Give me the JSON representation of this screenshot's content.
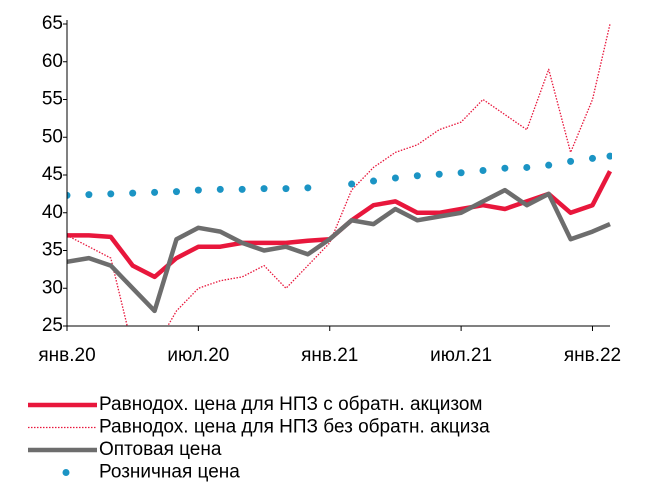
{
  "chart_data": {
    "type": "line",
    "x": [
      0,
      1,
      2,
      3,
      4,
      5,
      6,
      7,
      8,
      9,
      10,
      11,
      12,
      13,
      14,
      15,
      16,
      17,
      18,
      19,
      20,
      21,
      22,
      23,
      24,
      24.8
    ],
    "xlim": [
      0,
      24.8
    ],
    "xticks": [
      {
        "value": 0,
        "label": "янв.20"
      },
      {
        "value": 6,
        "label": "июл.20"
      },
      {
        "value": 12,
        "label": "янв.21"
      },
      {
        "value": 18,
        "label": "июл.21"
      },
      {
        "value": 24,
        "label": "янв.22"
      }
    ],
    "ylim": [
      25,
      65
    ],
    "yticks": [
      25,
      30,
      35,
      40,
      45,
      50,
      55,
      60,
      65
    ],
    "legend": "bottom",
    "series": [
      {
        "name": "Равнодох. цена для НПЗ с обратн. акцизом",
        "color": "#e8173c",
        "style": "solid",
        "values": [
          37,
          37,
          36.8,
          33,
          31.5,
          34,
          35.5,
          35.5,
          36,
          36,
          36,
          36.3,
          36.5,
          39,
          41,
          41.5,
          40,
          40,
          40.5,
          41,
          40.5,
          41.5,
          42.5,
          40,
          41,
          45.5
        ]
      },
      {
        "name": "Равнодох. цена для НПЗ без обратн. акциза",
        "color": "#e8173c",
        "style": "dotted",
        "values": [
          37,
          35.5,
          34,
          22,
          22,
          27,
          30,
          31,
          31.5,
          33,
          30,
          33,
          36,
          43,
          46,
          48,
          49,
          51,
          52,
          55,
          53,
          51,
          59,
          48,
          55,
          65
        ]
      },
      {
        "name": "Оптовая цена",
        "color": "#6d6d6d",
        "style": "solid",
        "values": [
          33.5,
          34,
          33,
          30,
          27,
          36.5,
          38,
          37.5,
          36,
          35,
          35.5,
          34.5,
          36.5,
          39,
          38.5,
          40.5,
          39,
          39.5,
          40,
          41.5,
          43,
          41,
          42.5,
          36.5,
          37.5,
          38.5
        ]
      },
      {
        "name": "Розничная цена",
        "color": "#1b94c4",
        "style": "dots",
        "values": [
          42.3,
          42.4,
          42.5,
          42.6,
          42.7,
          42.8,
          43,
          43.1,
          43.1,
          43.2,
          43.2,
          43.3,
          null,
          43.8,
          44.2,
          44.6,
          44.9,
          45.1,
          45.3,
          45.6,
          45.9,
          46,
          46.3,
          46.8,
          47.2,
          47.5
        ]
      }
    ]
  }
}
